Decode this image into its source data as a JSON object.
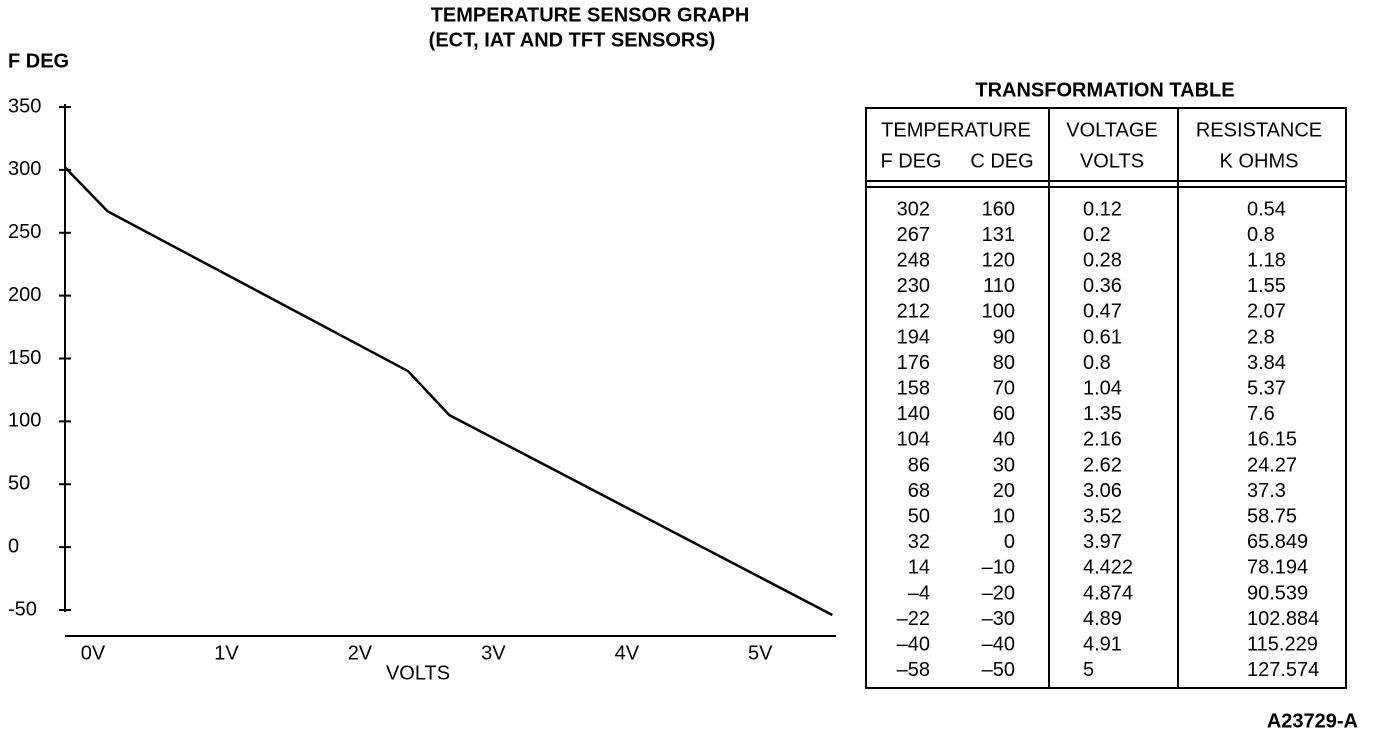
{
  "chart_data": {
    "type": "line",
    "title": "TEMPERATURE SENSOR GRAPH",
    "subtitle": "(ECT, IAT AND TFT SENSORS)",
    "y_label": "F DEG",
    "x_label": "VOLTS",
    "x": [
      -0.21,
      0.11,
      2.36,
      2.67,
      5.54
    ],
    "values": [
      302,
      267,
      140,
      105,
      -54
    ],
    "color": "#000000",
    "xlim": [
      -0.21,
      5.56
    ],
    "xticks": [
      {
        "value": 0,
        "label": "0V"
      },
      {
        "value": 1,
        "label": "1V"
      },
      {
        "value": 2,
        "label": "2V"
      },
      {
        "value": 3,
        "label": "3V"
      },
      {
        "value": 4,
        "label": "4V"
      },
      {
        "value": 5,
        "label": "5V"
      }
    ],
    "ylim": [
      -50,
      350
    ],
    "yticks": [
      350,
      300,
      250,
      200,
      150,
      100,
      50,
      0,
      -50
    ],
    "grid": false
  },
  "table": {
    "title": "TRANSFORMATION TABLE",
    "header": {
      "group": "TEMPERATURE",
      "columns": [
        "F DEG",
        "C DEG",
        "VOLTAGE",
        "RESISTANCE"
      ],
      "units": [
        "VOLTS",
        "K OHMS"
      ]
    },
    "rows": [
      [
        "302",
        "160",
        "0.12",
        "0.54"
      ],
      [
        "267",
        "131",
        "0.2",
        "0.8"
      ],
      [
        "248",
        "120",
        "0.28",
        "1.18"
      ],
      [
        "230",
        "110",
        "0.36",
        "1.55"
      ],
      [
        "212",
        "100",
        "0.47",
        "2.07"
      ],
      [
        "194",
        "90",
        "0.61",
        "2.8"
      ],
      [
        "176",
        "80",
        "0.8",
        "3.84"
      ],
      [
        "158",
        "70",
        "1.04",
        "5.37"
      ],
      [
        "140",
        "60",
        "1.35",
        "7.6"
      ],
      [
        "104",
        "40",
        "2.16",
        "16.15"
      ],
      [
        "86",
        "30",
        "2.62",
        "24.27"
      ],
      [
        "68",
        "20",
        "3.06",
        "37.3"
      ],
      [
        "50",
        "10",
        "3.52",
        "58.75"
      ],
      [
        "32",
        "0",
        "3.97",
        "65.849"
      ],
      [
        "14",
        "–10",
        "4.422",
        "78.194"
      ],
      [
        "–4",
        "–20",
        "4.874",
        "90.539"
      ],
      [
        "–22",
        "–30",
        "4.89",
        "102.884"
      ],
      [
        "–40",
        "–40",
        "4.91",
        "115.229"
      ],
      [
        "–58",
        "–50",
        "5",
        "127.574"
      ]
    ]
  },
  "footer": "A23729-A"
}
